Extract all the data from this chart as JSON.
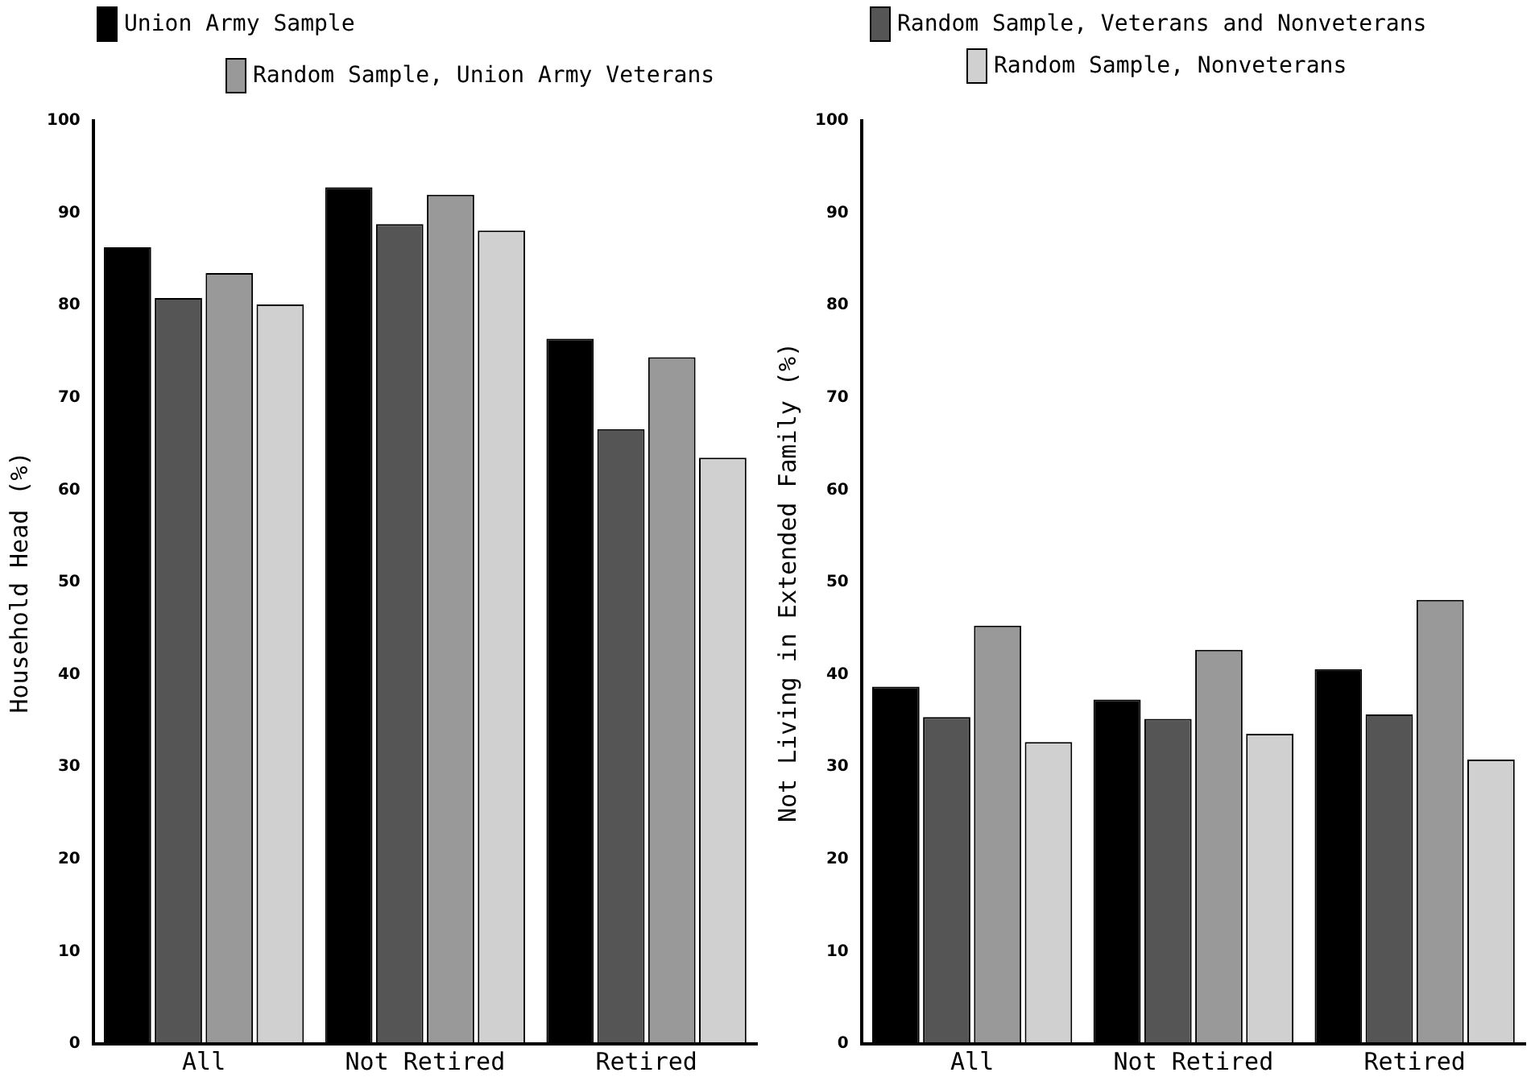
{
  "chart_data": [
    {
      "type": "bar",
      "ylabel": "Household Head (%)",
      "categories": [
        "All",
        "Not Retired",
        "Retired"
      ],
      "ylim": [
        0,
        100
      ],
      "yticks": [
        0,
        10,
        20,
        30,
        40,
        50,
        60,
        70,
        80,
        90,
        100
      ],
      "legend": "top",
      "grid": false,
      "series": [
        {
          "name": "Union Army Sample",
          "color": "#000000",
          "values": [
            86.3,
            92.8,
            76.4
          ]
        },
        {
          "name": "Random Sample, Veterans and Nonveterans",
          "color": "#555555",
          "values": [
            80.8,
            88.8,
            66.6
          ]
        },
        {
          "name": "Random Sample, Union Army Veterans",
          "color": "#999999",
          "values": [
            83.5,
            92.0,
            74.4
          ]
        },
        {
          "name": "Random Sample, Nonveterans",
          "color": "#d0d0d0",
          "values": [
            80.1,
            88.1,
            63.5
          ]
        }
      ]
    },
    {
      "type": "bar",
      "ylabel": "Not Living in Extended Family (%)",
      "categories": [
        "All",
        "Not Retired",
        "Retired"
      ],
      "ylim": [
        0,
        100
      ],
      "yticks": [
        0,
        10,
        20,
        30,
        40,
        50,
        60,
        70,
        80,
        90,
        100
      ],
      "grid": false,
      "series": [
        {
          "color": "#000000",
          "values": [
            38.7,
            37.3,
            40.6
          ]
        },
        {
          "color": "#555555",
          "values": [
            35.4,
            35.2,
            35.7
          ]
        },
        {
          "color": "#999999",
          "values": [
            45.3,
            42.7,
            48.1
          ]
        },
        {
          "color": "#d0d0d0",
          "values": [
            32.7,
            33.6,
            30.8
          ]
        }
      ]
    }
  ]
}
